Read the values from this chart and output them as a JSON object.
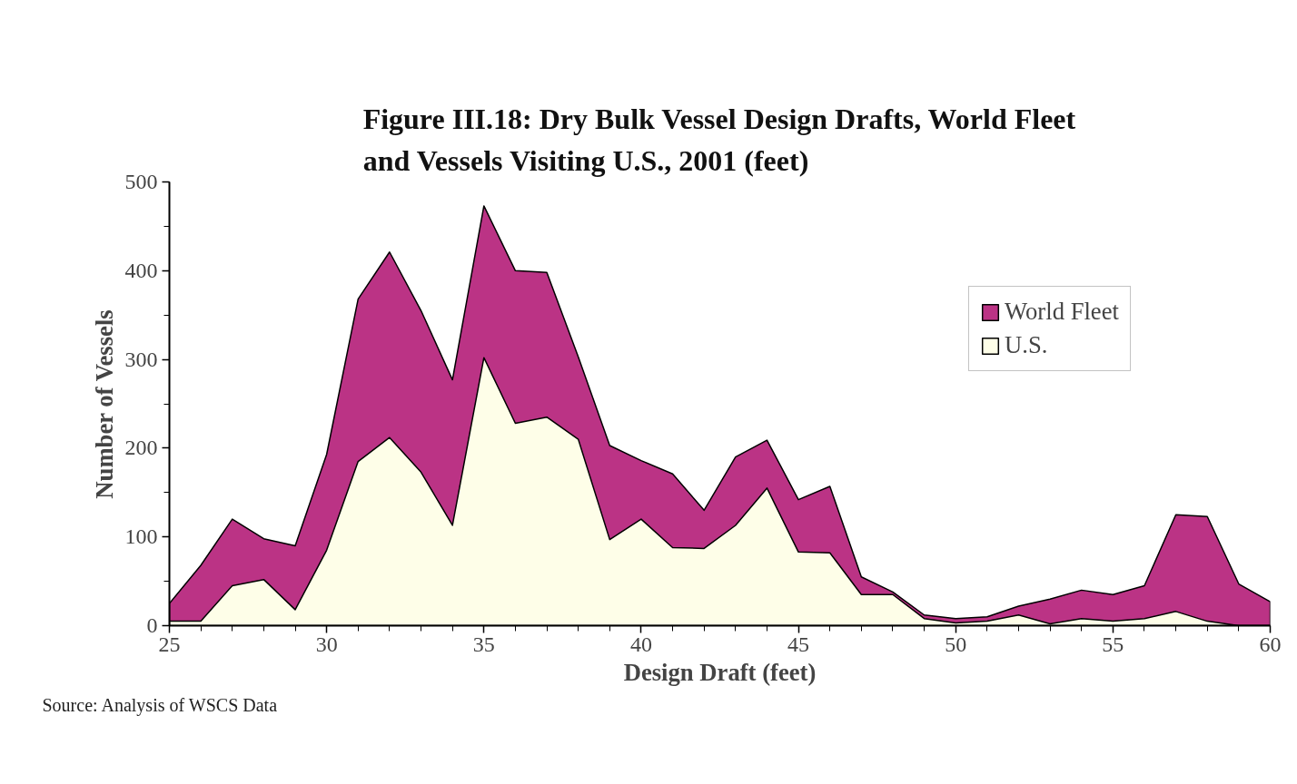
{
  "chart_data": {
    "type": "area",
    "title": "Figure III.18: Dry Bulk Vessel Design Drafts, World Fleet\nand Vessels Visiting U.S., 2001 (feet)",
    "xlabel": "Design Draft (feet)",
    "ylabel": "Number of Vessels",
    "annotations": [
      "Source: Analysis of WSCS Data"
    ],
    "x": [
      25,
      26,
      27,
      28,
      29,
      30,
      31,
      32,
      33,
      34,
      35,
      36,
      37,
      38,
      39,
      40,
      41,
      42,
      43,
      44,
      45,
      46,
      47,
      48,
      49,
      50,
      51,
      52,
      53,
      54,
      55,
      56,
      57,
      58,
      59,
      60
    ],
    "series": [
      {
        "name": "World Fleet",
        "color": "#bb3385",
        "values": [
          25,
          68,
          120,
          98,
          90,
          193,
          368,
          421,
          355,
          277,
          473,
          400,
          398,
          303,
          203,
          186,
          171,
          130,
          190,
          209,
          142,
          157,
          55,
          38,
          12,
          8,
          10,
          22,
          30,
          40,
          35,
          45,
          125,
          123,
          47,
          27
        ]
      },
      {
        "name": "U.S.",
        "color": "#fefee8",
        "values": [
          5,
          5,
          45,
          52,
          18,
          85,
          185,
          212,
          173,
          113,
          302,
          228,
          235,
          210,
          97,
          120,
          88,
          87,
          113,
          155,
          83,
          82,
          35,
          35,
          8,
          3,
          5,
          12,
          2,
          8,
          5,
          8,
          16,
          5,
          0,
          0
        ]
      }
    ],
    "xlim": [
      25,
      60
    ],
    "xticks": [
      25,
      30,
      35,
      40,
      45,
      50,
      55,
      60
    ],
    "ylim": [
      0,
      500
    ],
    "yticks": [
      0,
      100,
      200,
      300,
      400,
      500
    ],
    "grid": false,
    "legend": "top right"
  }
}
